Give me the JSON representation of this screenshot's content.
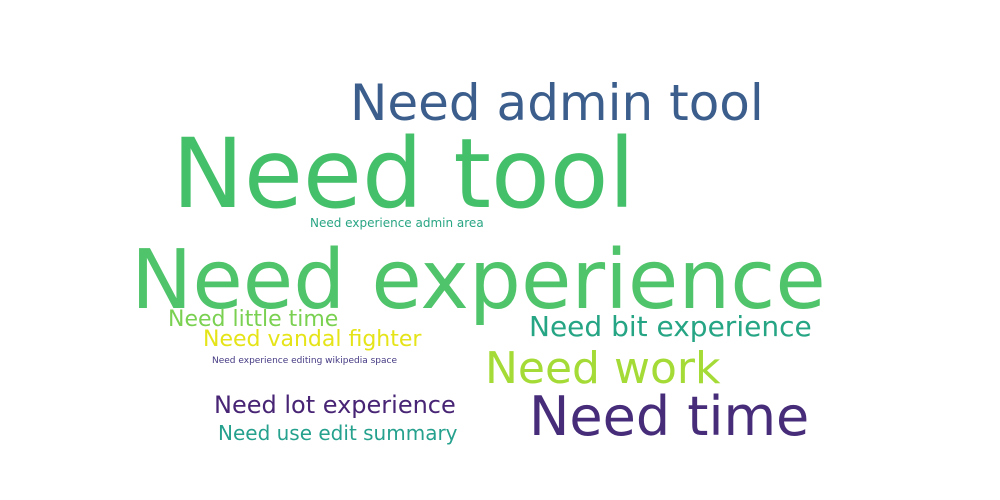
{
  "words": [
    {
      "text": "Need admin tool",
      "color": "#3b5e8c"
    },
    {
      "text": "Need tool",
      "color": "#45c06a"
    },
    {
      "text": "Need experience admin area",
      "color": "#29a584"
    },
    {
      "text": "Need experience",
      "color": "#4fc46a"
    },
    {
      "text": "Need little time",
      "color": "#7ad151"
    },
    {
      "text": "Need vandal fighter",
      "color": "#e5e419"
    },
    {
      "text": "Need bit experience",
      "color": "#26a584"
    },
    {
      "text": "Need experience editing wikipedia space",
      "color": "#443a83"
    },
    {
      "text": "Need work",
      "color": "#a5db36"
    },
    {
      "text": "Need lot experience",
      "color": "#482475"
    },
    {
      "text": "Need time",
      "color": "#472c7a"
    },
    {
      "text": "Need use edit summary",
      "color": "#25a18e"
    }
  ]
}
